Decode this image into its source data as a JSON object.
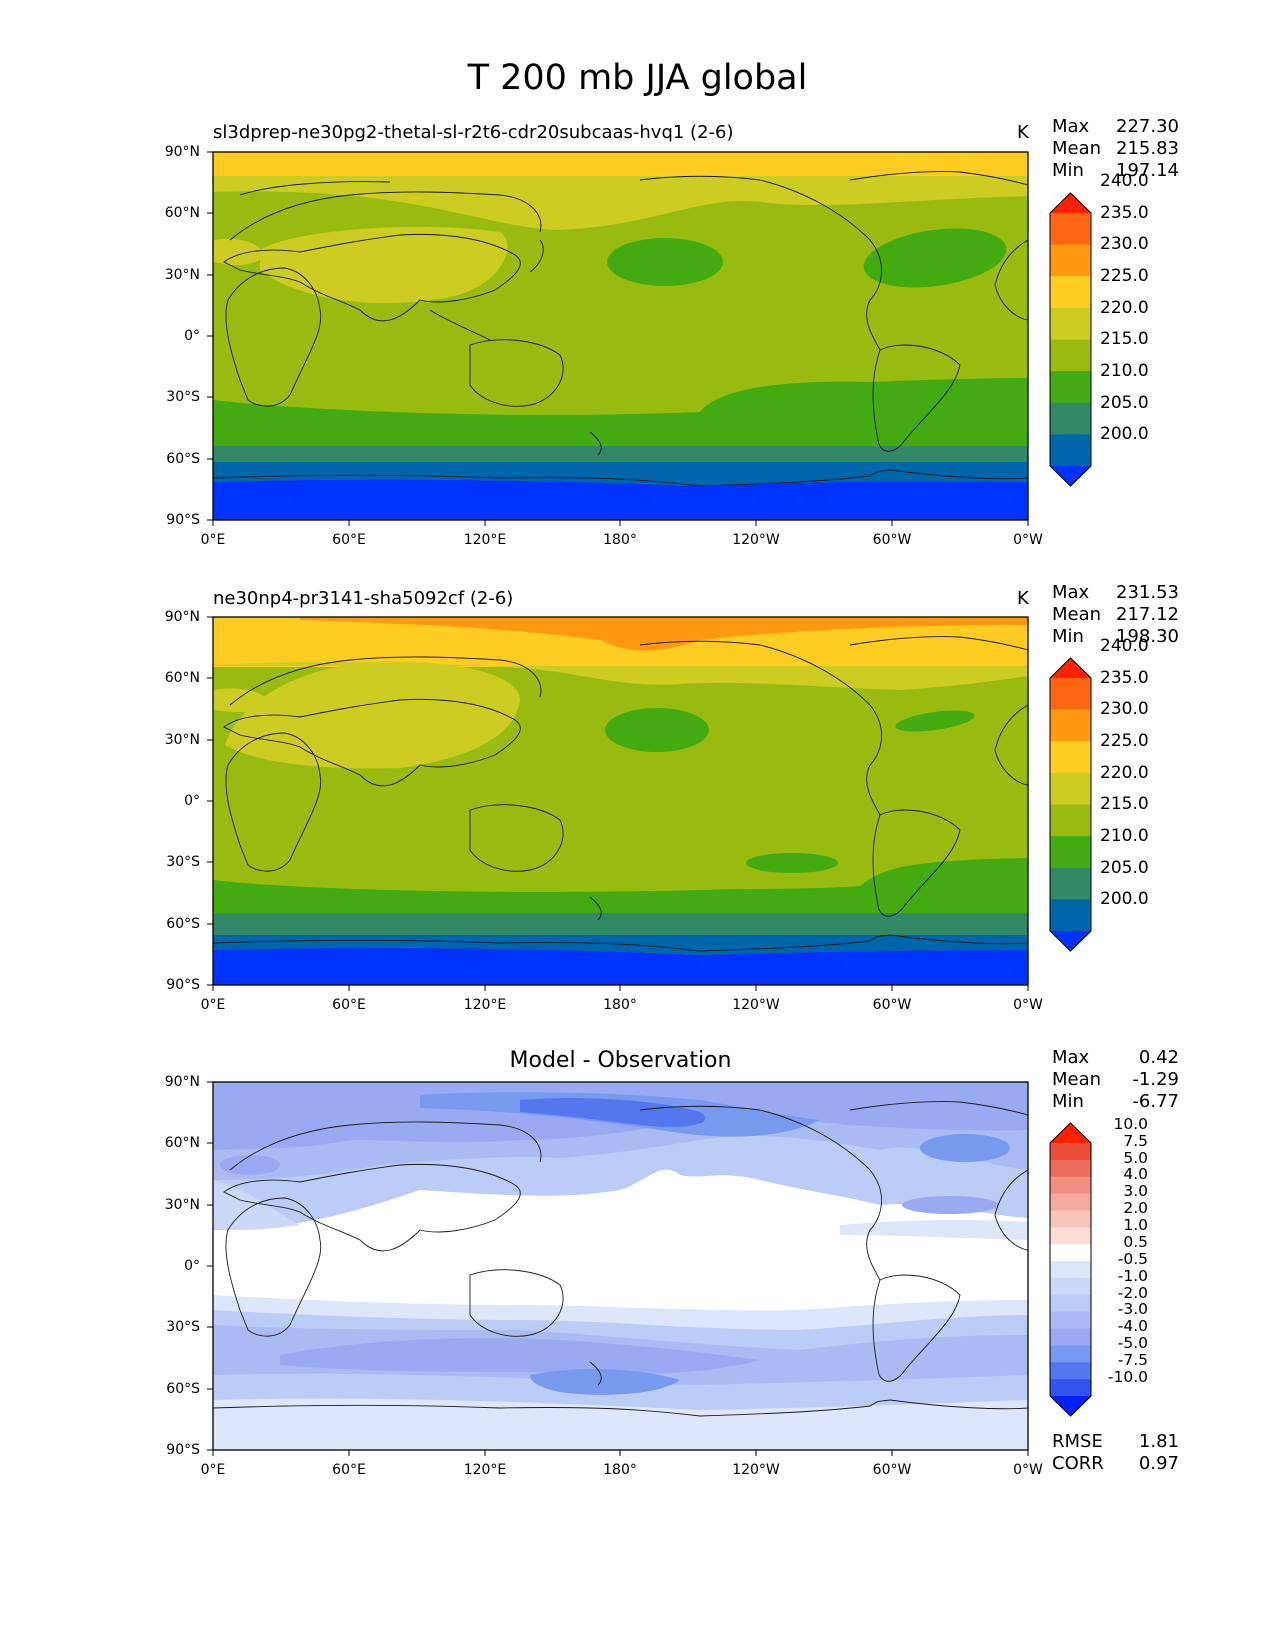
{
  "figure_title": "T 200 mb JJA global",
  "panels": [
    {
      "title": "sl3dprep-ne30pg2-thetal-sl-r2t6-cdr20subcaas-hvq1 (2-6)",
      "units": "K",
      "stats": {
        "max_label": "Max",
        "max": "227.30",
        "mean_label": "Mean",
        "mean": "215.83",
        "min_label": "Min",
        "min": "197.14"
      },
      "colorbar": {
        "colors": [
          "#0033ff",
          "#0066aa",
          "#338866",
          "#44aa11",
          "#99bb11",
          "#cccc22",
          "#ffcc22",
          "#ff9911",
          "#ff6611",
          "#ff2200"
        ],
        "labels": [
          "200.0",
          "205.0",
          "210.0",
          "215.0",
          "220.0",
          "225.0",
          "230.0",
          "235.0",
          "240.0"
        ]
      }
    },
    {
      "title": "ne30np4-pr3141-sha5092cf (2-6)",
      "units": "K",
      "stats": {
        "max_label": "Max",
        "max": "231.53",
        "mean_label": "Mean",
        "mean": "217.12",
        "min_label": "Min",
        "min": "198.30"
      },
      "colorbar": {
        "colors": [
          "#0033ff",
          "#0066aa",
          "#338866",
          "#44aa11",
          "#99bb11",
          "#cccc22",
          "#ffcc22",
          "#ff9911",
          "#ff6611",
          "#ff2200"
        ],
        "labels": [
          "200.0",
          "205.0",
          "210.0",
          "215.0",
          "220.0",
          "225.0",
          "230.0",
          "235.0",
          "240.0"
        ]
      }
    },
    {
      "title": "Model - Observation",
      "units": "",
      "stats": {
        "max_label": "Max",
        "max": "0.42",
        "mean_label": "Mean",
        "mean": "-1.29",
        "min_label": "Min",
        "min": "-6.77"
      },
      "colorbar": {
        "colors": [
          "#0022ff",
          "#3355ee",
          "#5577ee",
          "#7799ee",
          "#99aaf2",
          "#aabbf4",
          "#bbccf6",
          "#ccd8f8",
          "#dde6fa",
          "#ffffff",
          "#fbdcd6",
          "#f8c4ba",
          "#f5aaa0",
          "#f28e82",
          "#ee6e5e",
          "#ea4c38",
          "#ff2200"
        ],
        "labels": [
          "-10.0",
          "-7.5",
          "-5.0",
          "-4.0",
          "-3.0",
          "-2.0",
          "-1.0",
          "-0.5",
          "0.5",
          "1.0",
          "2.0",
          "3.0",
          "4.0",
          "5.0",
          "7.5",
          "10.0"
        ]
      },
      "error_stats": {
        "rmse_label": "RMSE",
        "rmse": "1.81",
        "corr_label": "CORR",
        "corr": "0.97"
      }
    }
  ],
  "axes": {
    "lat_ticks": [
      "90°N",
      "60°N",
      "30°N",
      "0°",
      "30°S",
      "60°S",
      "90°S"
    ],
    "lon_ticks": [
      "0°E",
      "60°E",
      "120°E",
      "180°",
      "120°W",
      "60°W",
      "0°W"
    ]
  }
}
